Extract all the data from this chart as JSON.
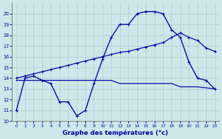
{
  "title": "Graphe des températures (°c)",
  "background_color": "#cce8e8",
  "grid_color": "#aacccc",
  "line_color": "#0000aa",
  "xlim": [
    -0.5,
    23.5
  ],
  "ylim": [
    10,
    21
  ],
  "xticks": [
    0,
    1,
    2,
    3,
    4,
    5,
    6,
    7,
    8,
    9,
    10,
    11,
    12,
    13,
    14,
    15,
    16,
    17,
    18,
    19,
    20,
    21,
    22,
    23
  ],
  "yticks": [
    10,
    11,
    12,
    13,
    14,
    15,
    16,
    17,
    18,
    19,
    20
  ],
  "series1_x": [
    0,
    1,
    2,
    3,
    4,
    5,
    6,
    7,
    8,
    9,
    10,
    11,
    12,
    13,
    14,
    15,
    16,
    17,
    18,
    19,
    20,
    21,
    22,
    23
  ],
  "series1_y": [
    11.0,
    14.0,
    14.2,
    13.8,
    13.5,
    11.8,
    11.8,
    10.5,
    11.0,
    13.5,
    15.8,
    17.8,
    19.0,
    19.0,
    20.0,
    20.2,
    20.2,
    20.0,
    18.5,
    17.8,
    15.5,
    14.0,
    13.8,
    13.0
  ],
  "series2_x": [
    0,
    1,
    2,
    3,
    4,
    5,
    6,
    7,
    8,
    9,
    10,
    11,
    12,
    13,
    14,
    15,
    16,
    17,
    18,
    19,
    20,
    21,
    22,
    23
  ],
  "series2_y": [
    13.8,
    13.8,
    13.8,
    13.8,
    13.8,
    13.8,
    13.8,
    13.8,
    13.8,
    13.8,
    13.8,
    13.8,
    13.5,
    13.5,
    13.5,
    13.5,
    13.5,
    13.5,
    13.5,
    13.2,
    13.2,
    13.2,
    13.1,
    13.0
  ],
  "series3_x": [
    0,
    1,
    2,
    3,
    4,
    5,
    6,
    7,
    8,
    9,
    10,
    11,
    12,
    13,
    14,
    15,
    16,
    17,
    18,
    19,
    20,
    21,
    22,
    23
  ],
  "series3_y": [
    14.0,
    14.2,
    14.4,
    14.6,
    14.8,
    15.0,
    15.2,
    15.4,
    15.6,
    15.8,
    16.0,
    16.2,
    16.4,
    16.5,
    16.7,
    16.9,
    17.1,
    17.3,
    17.8,
    18.2,
    17.8,
    17.5,
    16.8,
    16.5
  ]
}
